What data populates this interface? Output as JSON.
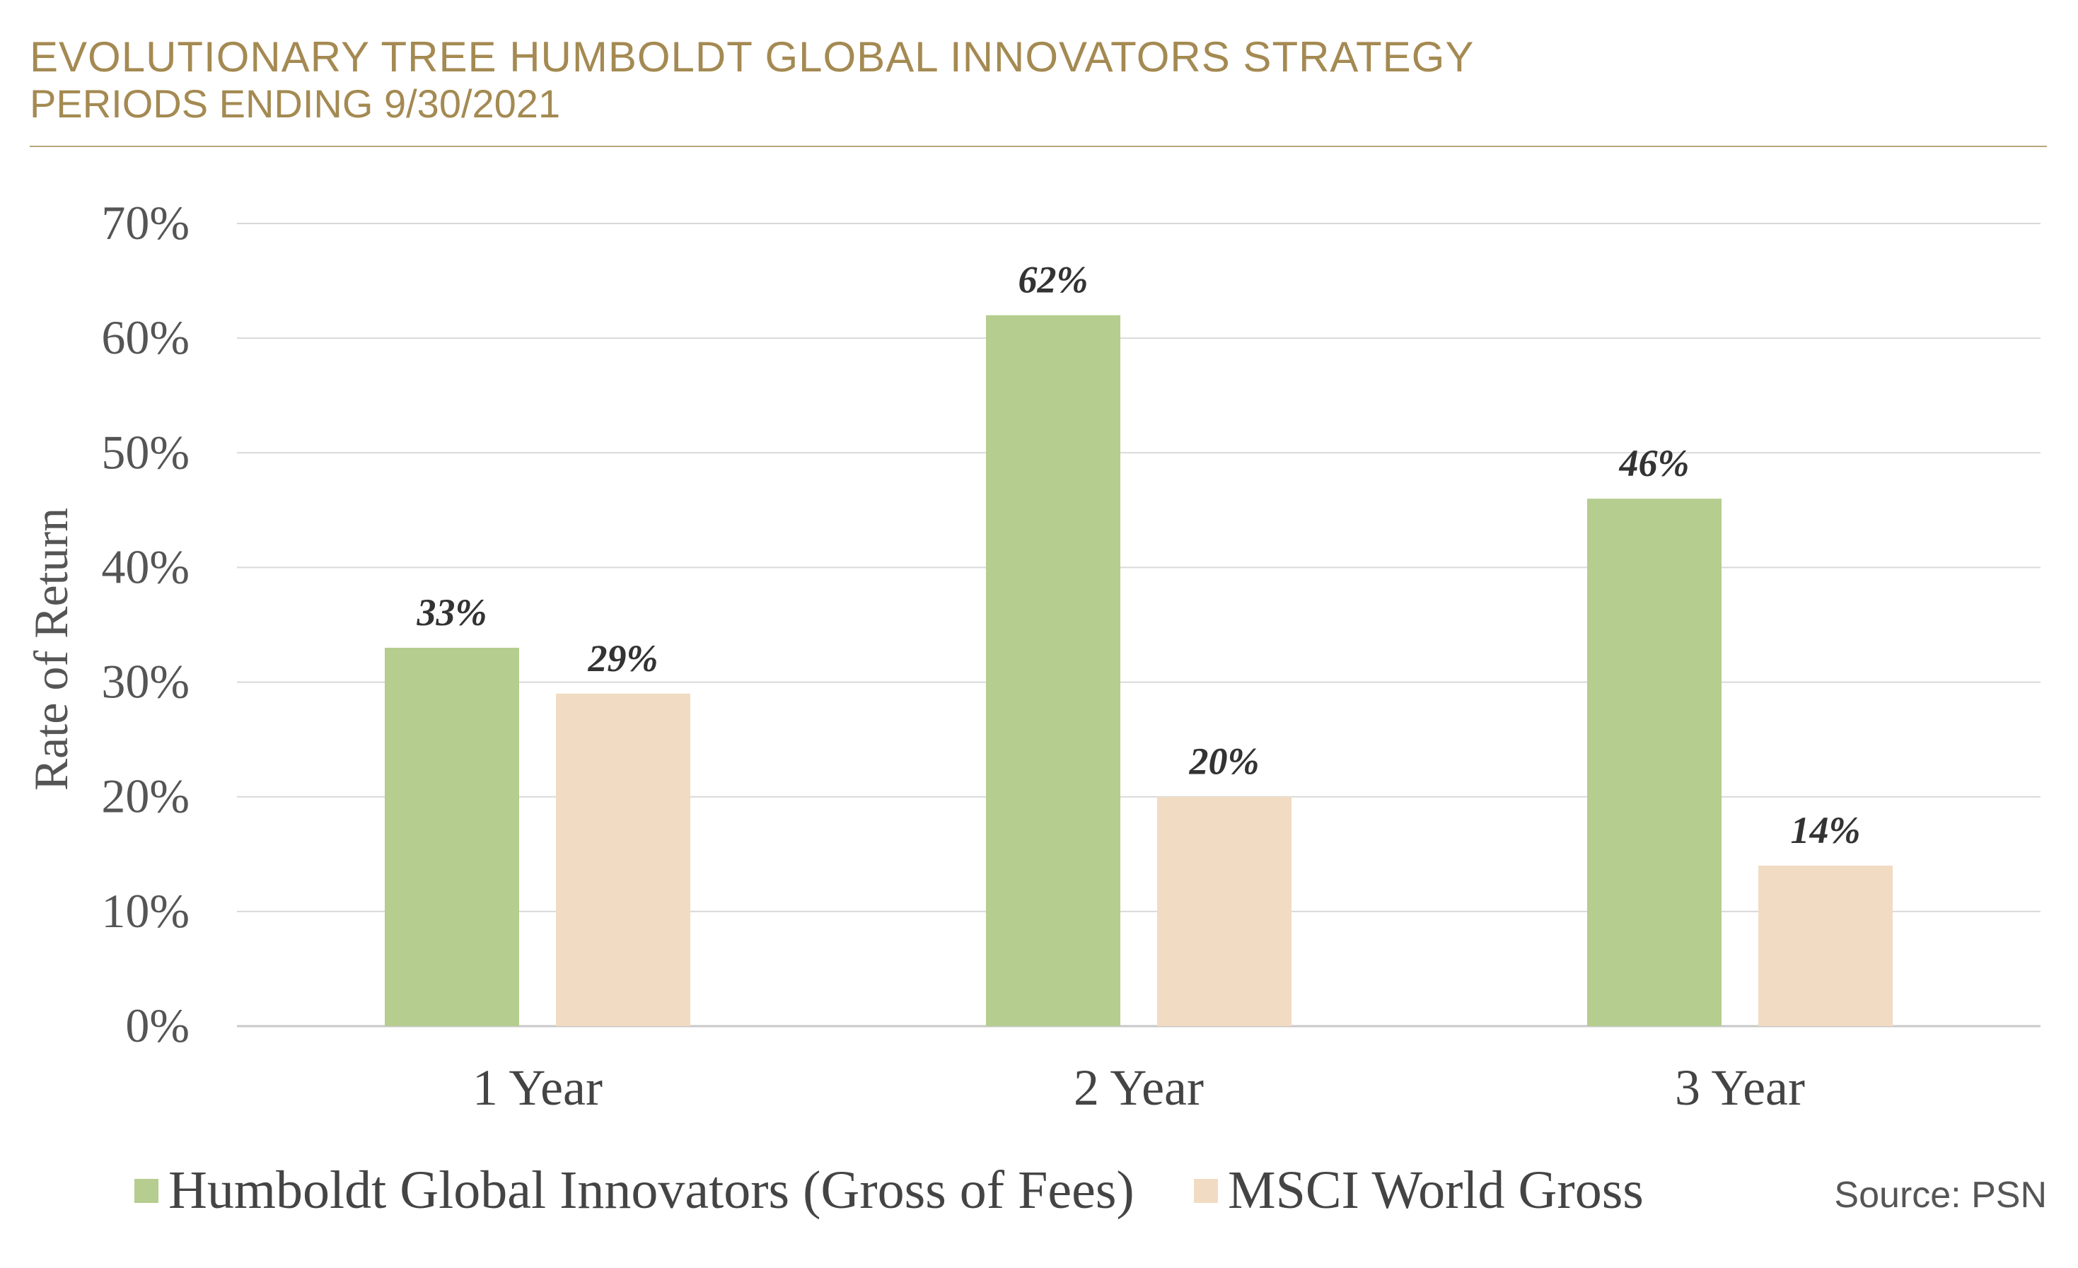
{
  "chart_data": {
    "type": "bar",
    "title": "EVOLUTIONARY TREE HUMBOLDT GLOBAL INNOVATORS STRATEGY",
    "subtitle": "PERIODS ENDING 9/30/2021",
    "ylabel": "Rate of Return",
    "xlabel": "",
    "ylim": [
      0,
      70
    ],
    "yticks": [
      "0%",
      "10%",
      "20%",
      "30%",
      "40%",
      "50%",
      "60%",
      "70%"
    ],
    "grid": true,
    "legend_position": "bottom",
    "categories": [
      "1 Year",
      "2 Year",
      "3 Year"
    ],
    "series": [
      {
        "name": "Humboldt Global Innovators (Gross of Fees)",
        "values": [
          33,
          62,
          46
        ],
        "labels": [
          "33%",
          "62%",
          "46%"
        ],
        "color": "#b5cd8f"
      },
      {
        "name": "MSCI World Gross",
        "values": [
          29,
          20,
          14
        ],
        "labels": [
          "29%",
          "20%",
          "14%"
        ],
        "color": "#f2dbc3"
      }
    ],
    "source": "Source: PSN"
  },
  "colors": {
    "title": "#a48a52",
    "rule": "#b9a67d",
    "grid": "#d9d9d9"
  }
}
